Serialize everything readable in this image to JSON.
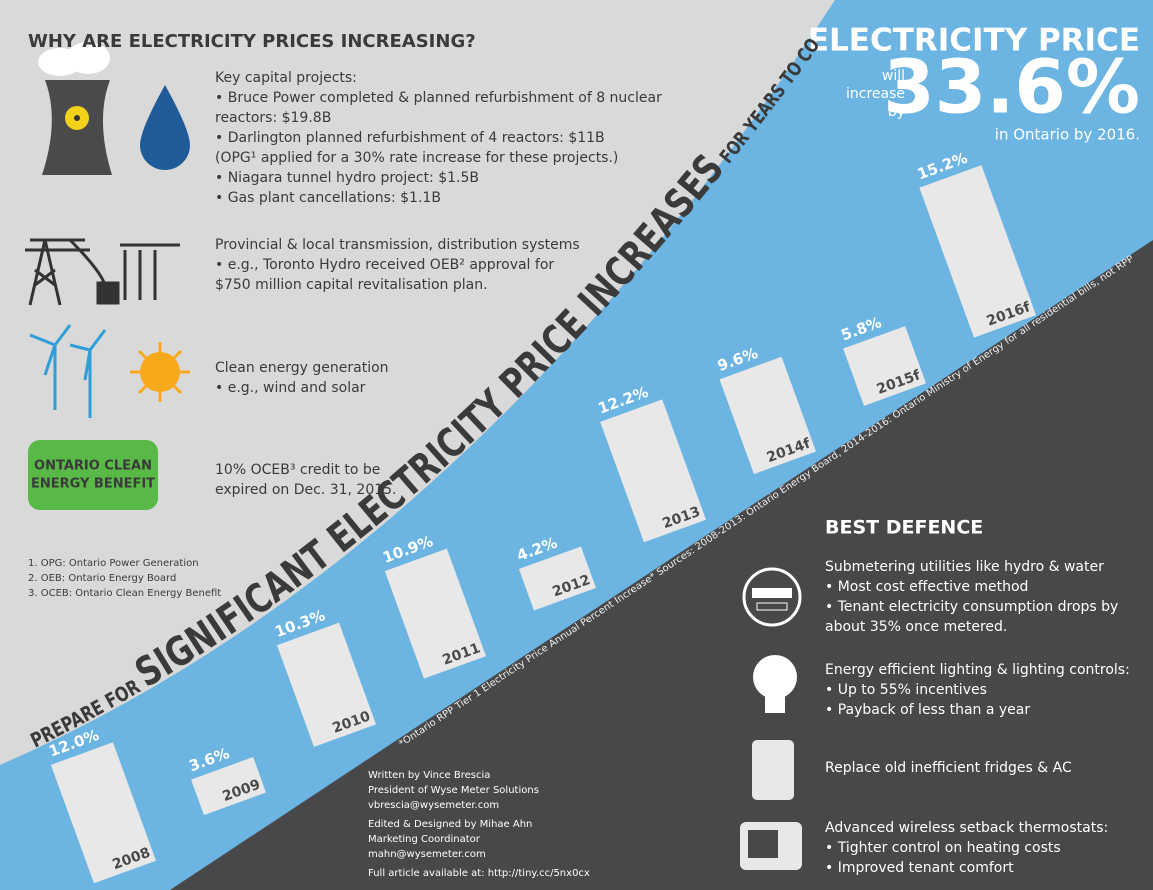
{
  "header": {
    "title": "WHY ARE ELECTRICITY PRICES INCREASING?"
  },
  "headline": {
    "title": "ELECTRICITY PRICE",
    "will": "will",
    "increase": "increase",
    "by": "by",
    "figure": "33.6%",
    "place": "in Ontario by 2016."
  },
  "causes": [
    {
      "title": "Key capital projects:",
      "lines": [
        "• Bruce Power completed & planned refurbishment of 8 nuclear",
        "reactors: $19.8B",
        "• Darlington planned refurbishment of 4 reactors: $11B",
        "(OPG¹ applied for a 30% rate increase for these projects.)",
        "• Niagara tunnel hydro project: $1.5B",
        "• Gas plant cancellations: $1.1B"
      ]
    },
    {
      "title": "Provincial & local transmission, distribution systems",
      "lines": [
        "• e.g., Toronto Hydro received OEB² approval for",
        "$750 million capital revitalisation plan."
      ]
    },
    {
      "title": "Clean energy generation",
      "lines": [
        "• e.g., wind and solar"
      ]
    },
    {
      "title": "10% OCEB³ credit to be",
      "lines": [
        "expired on Dec. 31, 2015."
      ]
    }
  ],
  "logo": {
    "lines": [
      "ONTARIO CLEAN",
      "ENERGY BENEFIT"
    ]
  },
  "footnotes": [
    "1. OPG: Ontario Power Generation",
    "2. OEB: Ontario Energy Board",
    "3. OCEB: Ontario Clean Energy Benefit"
  ],
  "banner": {
    "lead": "PREPARE FOR ",
    "main": "SIGNIFICANT ELECTRICITY PRICE INCREASES",
    "tail": " FOR YEARS TO COME"
  },
  "source": "*Ontario RPP Tier 1 Electricity Price Annual Percent Increase* Sources: 2008-2013: Ontario Energy Board, 2014-2016: Ontario Ministry of Energy for all residential bills, not RPP",
  "chart": {
    "type": "bar",
    "categories": [
      "2008",
      "2009",
      "2010",
      "2011",
      "2012",
      "2013",
      "2014f",
      "2015f",
      "2016f"
    ],
    "values": [
      12.0,
      3.6,
      10.3,
      10.9,
      4.2,
      12.2,
      9.6,
      5.8,
      15.2
    ],
    "value_labels": [
      "12.0%",
      "3.6%",
      "10.3%",
      "10.9%",
      "4.2%",
      "12.2%",
      "9.6%",
      "5.8%",
      "15.2%"
    ],
    "color": "#e8e8e8"
  },
  "defence": {
    "title": "BEST DEFENCE",
    "items": [
      [
        "Submetering utilities like hydro & water",
        "• Most cost effective method",
        "• Tenant electricity consumption drops by",
        "about 35% once metered."
      ],
      [
        "Energy efficient lighting & lighting controls:",
        "• Up to 55% incentives",
        "• Payback of less than a year"
      ],
      [
        "Replace old inefficient fridges & AC"
      ],
      [
        "Advanced wireless setback thermostats:",
        "• Tighter control on heating costs",
        "• Improved tenant comfort"
      ]
    ]
  },
  "credits": [
    [
      "Written by Vince Brescia",
      "President of Wyse Meter Solutions",
      "vbrescia@wysemeter.com"
    ],
    [
      "Edited & Designed by Mihae Ahn",
      "Marketing Coordinator",
      "mahn@wysemeter.com"
    ],
    [
      "Full article available at: http://tiny.cc/5nx0cx"
    ]
  ]
}
